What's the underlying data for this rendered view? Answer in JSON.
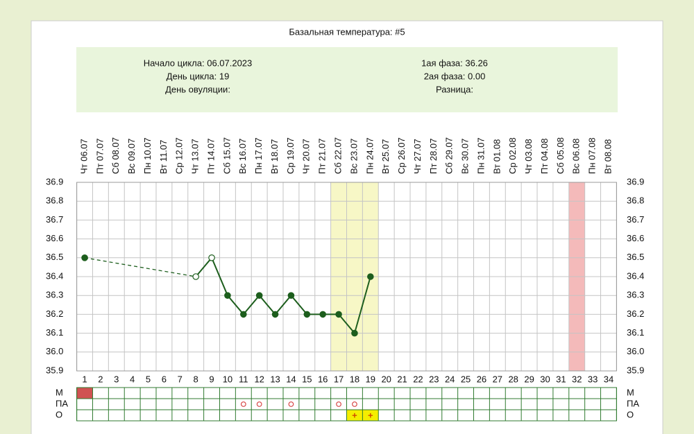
{
  "chart_data": {
    "type": "line",
    "title": "Базальная температура: #5",
    "info_left": [
      "Начало цикла: 06.07.2023",
      "День цикла: 19",
      "День овуляции:"
    ],
    "info_right": [
      "1ая фаза: 36.26",
      "2ая фаза: 0.00",
      "Разница:"
    ],
    "x": [
      1,
      2,
      3,
      4,
      5,
      6,
      7,
      8,
      9,
      10,
      11,
      12,
      13,
      14,
      15,
      16,
      17,
      18,
      19,
      20,
      21,
      22,
      23,
      24,
      25,
      26,
      27,
      28,
      29,
      30,
      31,
      32,
      33,
      34
    ],
    "date_labels": [
      "Чт 06.07",
      "Пт 07.07",
      "Сб 08.07",
      "Вс 09.07",
      "Пн 10.07",
      "Вт 11.07",
      "Ср 12.07",
      "Чт 13.07",
      "Пт 14.07",
      "Сб 15.07",
      "Вс 16.07",
      "Пн 17.07",
      "Вт 18.07",
      "Ср 19.07",
      "Чт 20.07",
      "Пт 21.07",
      "Сб 22.07",
      "Вс 23.07",
      "Пн 24.07",
      "Вт 25.07",
      "Ср 26.07",
      "Чт 27.07",
      "Пт 28.07",
      "Сб 29.07",
      "Вс 30.07",
      "Пн 31.07",
      "Вт 01.08",
      "Ср 02.08",
      "Чт 03.08",
      "Пт 04.08",
      "Сб 05.08",
      "Вс 06.08",
      "Пн 07.08",
      "Вт 08.08"
    ],
    "series": [
      {
        "color": "#1d5e1d",
        "values": [
          36.5,
          null,
          null,
          null,
          null,
          null,
          null,
          36.4,
          36.5,
          36.3,
          36.2,
          36.3,
          36.2,
          36.3,
          36.2,
          36.2,
          36.2,
          36.1,
          36.4,
          null,
          null,
          null,
          null,
          null,
          null,
          null,
          null,
          null,
          null,
          null,
          null,
          null,
          null,
          null
        ],
        "marker_styles": [
          "filled",
          null,
          null,
          null,
          null,
          null,
          null,
          "open",
          "open",
          "filled",
          "filled",
          "filled",
          "filled",
          "filled",
          "filled",
          "filled",
          "filled",
          "filled",
          "filled",
          null,
          null,
          null,
          null,
          null,
          null,
          null,
          null,
          null,
          null,
          null,
          null,
          null,
          null,
          null
        ]
      }
    ],
    "ylim": [
      35.9,
      36.9
    ],
    "yticks": [
      36.9,
      36.8,
      36.7,
      36.6,
      36.5,
      36.4,
      36.3,
      36.2,
      36.1,
      {
        "value": 36.0,
        "label": "36.0"
      },
      35.9
    ],
    "grid": true,
    "highlights": [
      {
        "days": [
          17,
          18,
          19
        ],
        "color": "#f7f7c6"
      },
      {
        "days": [
          32
        ],
        "color": "#f4baba"
      }
    ],
    "rows": [
      {
        "label": "М",
        "filled_days": [
          1
        ],
        "fill": "#d05252"
      },
      {
        "label": "ПА",
        "circle_days": [
          11,
          12,
          14,
          17,
          18
        ],
        "circle_color": "#d84848"
      },
      {
        "label": "О",
        "text_marks": [
          {
            "day": 18,
            "text": "+"
          },
          {
            "day": 19,
            "text": "+"
          }
        ],
        "fill": "#f5ee00",
        "text_color": "#d04a00"
      }
    ]
  }
}
